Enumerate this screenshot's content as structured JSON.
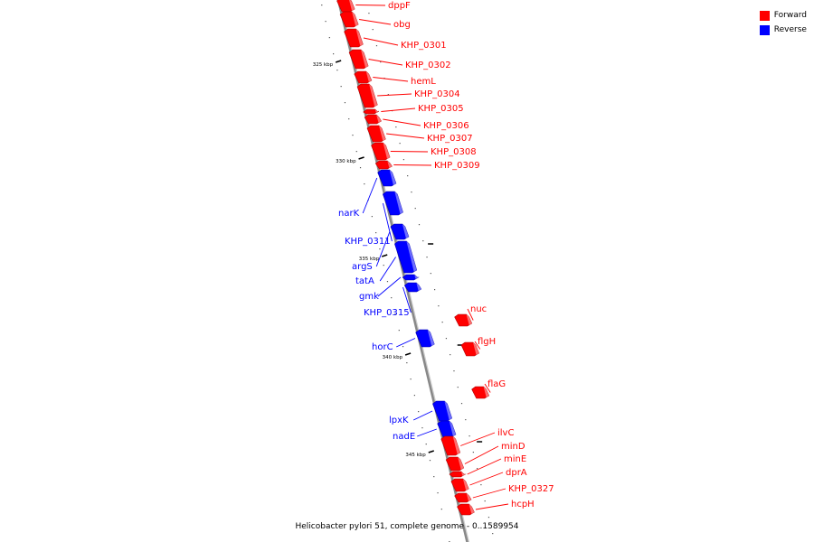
{
  "legend": {
    "forward_label": "Forward",
    "reverse_label": "Reverse",
    "forward_color": "#ff0000",
    "reverse_color": "#0000ff"
  },
  "caption": "Helicobacter pylori 51, complete genome - 0..1589954",
  "colors": {
    "forward": "#ff0000",
    "forward_dark": "#aa0000",
    "forward_light": "#ff8888",
    "reverse": "#0000ff",
    "reverse_dark": "#0000aa",
    "reverse_light": "#8888ff",
    "backbone": "#888888"
  },
  "ruler": [
    {
      "label": "325 kbp"
    },
    {
      "label": "330 kbp"
    },
    {
      "label": "335 kbp"
    },
    {
      "label": "340 kbp"
    },
    {
      "label": "345 kbp"
    }
  ],
  "genes": [
    {
      "name": "dppF",
      "strand": "forward"
    },
    {
      "name": "obg",
      "strand": "forward"
    },
    {
      "name": "KHP_0301",
      "strand": "forward"
    },
    {
      "name": "KHP_0302",
      "strand": "forward"
    },
    {
      "name": "hemL",
      "strand": "forward"
    },
    {
      "name": "KHP_0304",
      "strand": "forward"
    },
    {
      "name": "KHP_0305",
      "strand": "forward"
    },
    {
      "name": "KHP_0306",
      "strand": "forward"
    },
    {
      "name": "KHP_0307",
      "strand": "forward"
    },
    {
      "name": "KHP_0308",
      "strand": "forward"
    },
    {
      "name": "KHP_0309",
      "strand": "forward"
    },
    {
      "name": "narK",
      "strand": "reverse"
    },
    {
      "name": "KHP_0311",
      "strand": "reverse"
    },
    {
      "name": "argS",
      "strand": "reverse"
    },
    {
      "name": "tatA",
      "strand": "reverse"
    },
    {
      "name": "gmk",
      "strand": "reverse"
    },
    {
      "name": "KHP_0315",
      "strand": "reverse"
    },
    {
      "name": "nuc",
      "strand": "forward"
    },
    {
      "name": "horC",
      "strand": "reverse"
    },
    {
      "name": "flgH",
      "strand": "forward"
    },
    {
      "name": "flaG",
      "strand": "forward"
    },
    {
      "name": "lpxK",
      "strand": "reverse"
    },
    {
      "name": "nadE",
      "strand": "reverse"
    },
    {
      "name": "ilvC",
      "strand": "forward"
    },
    {
      "name": "minD",
      "strand": "forward"
    },
    {
      "name": "minE",
      "strand": "forward"
    },
    {
      "name": "dprA",
      "strand": "forward"
    },
    {
      "name": "KHP_0327",
      "strand": "forward"
    },
    {
      "name": "hcpH",
      "strand": "forward"
    }
  ]
}
